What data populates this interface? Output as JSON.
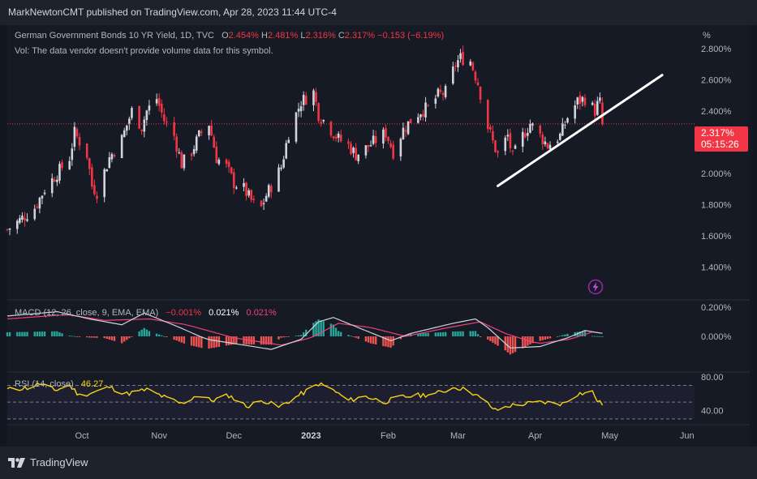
{
  "header": {
    "published": "MarkNewtonCMT published on TradingView.com, Apr 28, 2023 11:44 UTC-4"
  },
  "legend": {
    "title": "German Government Bonds 10 YR Yield, 1D, TVC",
    "o_label": "O",
    "o_value": "2.454%",
    "h_label": "H",
    "h_value": "2.481%",
    "l_label": "L",
    "l_value": "2.316%",
    "c_label": "C",
    "c_value": "2.317%",
    "change": "−0.153 (−6.19%)",
    "vol_note": "Vol: The data vendor doesn't provide volume data for this symbol."
  },
  "price_axis": {
    "unit": "%",
    "current_price": "2.317%",
    "countdown": "05:15:26"
  },
  "macd_legend": {
    "title": "MACD (12, 26, close, 9, EMA, EMA)",
    "hist": "−0.001%",
    "macd": "0.021%",
    "signal": "0.021%"
  },
  "rsi_legend": {
    "title": "RSI (14, close)",
    "value": "46.27"
  },
  "brand": {
    "name": "TradingView"
  },
  "colors": {
    "up": "#d1d4dc",
    "down": "#f23645",
    "trendline": "#ffffff",
    "macd_line": "#d1d4dc",
    "signal_line": "#f23f7b",
    "hist_up": "#26a69a",
    "hist_down": "#ef5350",
    "rsi": "#f5d511"
  },
  "icons": [
    "lightning-icon",
    "tradingview-logo"
  ],
  "chart_data": [
    {
      "type": "candlestick",
      "title": "German Government Bonds 10 YR Yield, 1D, TVC",
      "y_unit": "%",
      "ylim": [
        1.2,
        2.95
      ],
      "y_ticks": [
        "2.800%",
        "2.600%",
        "2.400%",
        "2.200%",
        "2.000%",
        "1.800%",
        "1.600%",
        "1.400%"
      ],
      "y_tick_values": [
        2.8,
        2.6,
        2.4,
        2.2,
        2.0,
        1.8,
        1.6,
        1.4
      ],
      "x_ticks": [
        "Oct",
        "Nov",
        "Dec",
        "2023",
        "Feb",
        "Mar",
        "Apr",
        "May",
        "Jun"
      ],
      "x_tick_dates": [
        "2022-10-01",
        "2022-11-01",
        "2022-12-01",
        "2023-01-01",
        "2023-02-01",
        "2023-03-01",
        "2023-04-01",
        "2023-05-01",
        "2023-06-01"
      ],
      "xlim": [
        "2022-09-01",
        "2023-06-04"
      ],
      "current_close": 2.317,
      "series": [
        {
          "name": "German Government Bonds 10 YR Yield",
          "anchors": [
            [
              "2022-09-01",
              1.64
            ],
            [
              "2022-09-06",
              1.7
            ],
            [
              "2022-09-12",
              1.78
            ],
            [
              "2022-09-16",
              1.9
            ],
            [
              "2022-09-21",
              2.0
            ],
            [
              "2022-09-26",
              2.1
            ],
            [
              "2022-09-28",
              2.26
            ],
            [
              "2022-10-03",
              2.12
            ],
            [
              "2022-10-05",
              1.92
            ],
            [
              "2022-10-07",
              1.88
            ],
            [
              "2022-10-12",
              2.1
            ],
            [
              "2022-10-17",
              2.22
            ],
            [
              "2022-10-21",
              2.4
            ],
            [
              "2022-10-25",
              2.3
            ],
            [
              "2022-10-27",
              2.4
            ],
            [
              "2022-10-31",
              2.48
            ],
            [
              "2022-11-03",
              2.34
            ],
            [
              "2022-11-07",
              2.24
            ],
            [
              "2022-11-10",
              2.06
            ],
            [
              "2022-11-14",
              2.14
            ],
            [
              "2022-11-17",
              2.24
            ],
            [
              "2022-11-21",
              2.32
            ],
            [
              "2022-11-24",
              2.1
            ],
            [
              "2022-11-28",
              2.04
            ],
            [
              "2022-12-01",
              1.94
            ],
            [
              "2022-12-05",
              1.9
            ],
            [
              "2022-12-09",
              1.8
            ],
            [
              "2022-12-12",
              1.78
            ],
            [
              "2022-12-14",
              1.86
            ],
            [
              "2022-12-16",
              1.92
            ],
            [
              "2022-12-20",
              2.04
            ],
            [
              "2022-12-23",
              2.26
            ],
            [
              "2022-12-28",
              2.46
            ],
            [
              "2023-01-02",
              2.52
            ],
            [
              "2023-01-04",
              2.38
            ],
            [
              "2023-01-09",
              2.28
            ],
            [
              "2023-01-12",
              2.22
            ],
            [
              "2023-01-16",
              2.18
            ],
            [
              "2023-01-19",
              2.12
            ],
            [
              "2023-01-23",
              2.16
            ],
            [
              "2023-01-26",
              2.2
            ],
            [
              "2023-01-31",
              2.26
            ],
            [
              "2023-02-03",
              2.14
            ],
            [
              "2023-02-07",
              2.28
            ],
            [
              "2023-02-10",
              2.34
            ],
            [
              "2023-02-14",
              2.4
            ],
            [
              "2023-02-17",
              2.42
            ],
            [
              "2023-02-21",
              2.5
            ],
            [
              "2023-02-24",
              2.52
            ],
            [
              "2023-02-28",
              2.7
            ],
            [
              "2023-03-02",
              2.74
            ],
            [
              "2023-03-06",
              2.72
            ],
            [
              "2023-03-09",
              2.58
            ],
            [
              "2023-03-13",
              2.3
            ],
            [
              "2023-03-15",
              2.2
            ],
            [
              "2023-03-17",
              2.12
            ],
            [
              "2023-03-21",
              2.24
            ],
            [
              "2023-03-23",
              2.1
            ],
            [
              "2023-03-27",
              2.24
            ],
            [
              "2023-03-30",
              2.32
            ],
            [
              "2023-04-03",
              2.24
            ],
            [
              "2023-04-06",
              2.18
            ],
            [
              "2023-04-11",
              2.24
            ],
            [
              "2023-04-14",
              2.36
            ],
            [
              "2023-04-18",
              2.46
            ],
            [
              "2023-04-21",
              2.48
            ],
            [
              "2023-04-25",
              2.4
            ],
            [
              "2023-04-26",
              2.44
            ],
            [
              "2023-04-27",
              2.454
            ],
            [
              "2023-04-28",
              2.317
            ]
          ]
        }
      ],
      "annotations": [
        {
          "type": "trendline",
          "from": [
            "2023-03-17",
            1.92
          ],
          "to": [
            "2023-05-22",
            2.63
          ]
        }
      ]
    },
    {
      "type": "line",
      "title": "MACD (12, 26, close, 9, EMA, EMA)",
      "y_unit": "%",
      "ylim": [
        -0.24,
        0.24
      ],
      "y_ticks": [
        "0.200%",
        "0.000%"
      ],
      "y_tick_values": [
        0.2,
        0.0
      ],
      "series": [
        {
          "name": "MACD",
          "anchors": [
            [
              "2022-09-01",
              0.14
            ],
            [
              "2022-09-21",
              0.17
            ],
            [
              "2022-10-04",
              0.12
            ],
            [
              "2022-10-17",
              0.08
            ],
            [
              "2022-10-26",
              0.16
            ],
            [
              "2022-11-08",
              0.07
            ],
            [
              "2022-11-20",
              -0.02
            ],
            [
              "2022-12-05",
              -0.06
            ],
            [
              "2022-12-16",
              -0.09
            ],
            [
              "2022-12-28",
              -0.02
            ],
            [
              "2023-01-04",
              0.1
            ],
            [
              "2023-01-10",
              0.13
            ],
            [
              "2023-01-20",
              0.06
            ],
            [
              "2023-02-02",
              -0.03
            ],
            [
              "2023-02-10",
              0.02
            ],
            [
              "2023-02-27",
              0.09
            ],
            [
              "2023-03-08",
              0.12
            ],
            [
              "2023-03-13",
              0.06
            ],
            [
              "2023-03-22",
              -0.08
            ],
            [
              "2023-04-03",
              -0.07
            ],
            [
              "2023-04-14",
              -0.01
            ],
            [
              "2023-04-21",
              0.04
            ],
            [
              "2023-04-28",
              0.021
            ]
          ]
        },
        {
          "name": "Signal",
          "anchors": [
            [
              "2022-09-01",
              0.12
            ],
            [
              "2022-09-25",
              0.15
            ],
            [
              "2022-10-10",
              0.11
            ],
            [
              "2022-10-28",
              0.12
            ],
            [
              "2022-11-12",
              0.08
            ],
            [
              "2022-12-01",
              -0.01
            ],
            [
              "2022-12-20",
              -0.06
            ],
            [
              "2023-01-01",
              -0.01
            ],
            [
              "2023-01-12",
              0.09
            ],
            [
              "2023-01-25",
              0.06
            ],
            [
              "2023-02-08",
              0.0
            ],
            [
              "2023-02-25",
              0.06
            ],
            [
              "2023-03-10",
              0.1
            ],
            [
              "2023-03-20",
              0.02
            ],
            [
              "2023-04-02",
              -0.05
            ],
            [
              "2023-04-15",
              -0.02
            ],
            [
              "2023-04-24",
              0.03
            ],
            [
              "2023-04-28",
              0.021
            ]
          ]
        }
      ]
    },
    {
      "type": "line",
      "title": "RSI (14, close)",
      "ylim": [
        25,
        85
      ],
      "y_ticks": [
        "80.00",
        "40.00"
      ],
      "y_tick_values": [
        80,
        40
      ],
      "bands": [
        70,
        50,
        30
      ],
      "series": [
        {
          "name": "RSI",
          "anchors": [
            [
              "2022-09-01",
              65
            ],
            [
              "2022-09-09",
              67
            ],
            [
              "2022-09-14",
              72
            ],
            [
              "2022-09-20",
              64
            ],
            [
              "2022-09-26",
              70
            ],
            [
              "2022-09-30",
              58
            ],
            [
              "2022-10-06",
              62
            ],
            [
              "2022-10-12",
              68
            ],
            [
              "2022-10-19",
              60
            ],
            [
              "2022-10-27",
              65
            ],
            [
              "2022-11-03",
              56
            ],
            [
              "2022-11-10",
              48
            ],
            [
              "2022-11-16",
              58
            ],
            [
              "2022-11-22",
              52
            ],
            [
              "2022-11-29",
              58
            ],
            [
              "2022-12-06",
              45
            ],
            [
              "2022-12-13",
              52
            ],
            [
              "2022-12-19",
              44
            ],
            [
              "2022-12-27",
              58
            ],
            [
              "2023-01-02",
              68
            ],
            [
              "2023-01-04",
              72
            ],
            [
              "2023-01-09",
              66
            ],
            [
              "2023-01-16",
              52
            ],
            [
              "2023-01-23",
              57
            ],
            [
              "2023-01-30",
              50
            ],
            [
              "2023-02-06",
              56
            ],
            [
              "2023-02-13",
              58
            ],
            [
              "2023-02-20",
              60
            ],
            [
              "2023-02-28",
              68
            ],
            [
              "2023-03-06",
              63
            ],
            [
              "2023-03-13",
              48
            ],
            [
              "2023-03-16",
              40
            ],
            [
              "2023-03-22",
              46
            ],
            [
              "2023-03-28",
              48
            ],
            [
              "2023-04-04",
              50
            ],
            [
              "2023-04-12",
              48
            ],
            [
              "2023-04-18",
              60
            ],
            [
              "2023-04-24",
              62
            ],
            [
              "2023-04-26",
              52
            ],
            [
              "2023-04-28",
              46.27
            ]
          ]
        }
      ]
    }
  ]
}
